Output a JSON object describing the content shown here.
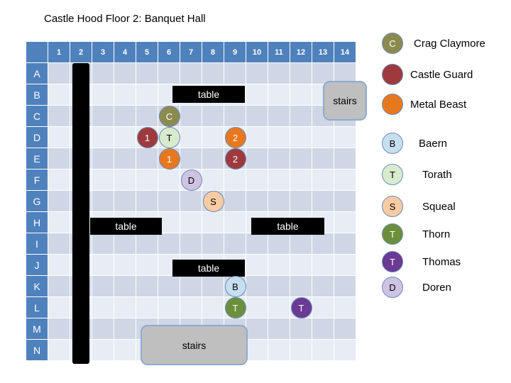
{
  "title": "Castle Hood Floor 2: Banquet Hall",
  "columns": [
    "1",
    "2",
    "3",
    "4",
    "5",
    "6",
    "7",
    "8",
    "9",
    "10",
    "11",
    "12",
    "13",
    "14"
  ],
  "rows": [
    "A",
    "B",
    "C",
    "D",
    "E",
    "F",
    "G",
    "H",
    "I",
    "J",
    "K",
    "L",
    "M",
    "N"
  ],
  "objects": {
    "table_label": "table",
    "stairs_label": "stairs"
  },
  "tokens": [
    {
      "id": "crag-claymore",
      "letter": "C",
      "row": "C",
      "col": "6",
      "color": "#8b8b4f",
      "text": "#ffffff"
    },
    {
      "id": "castle-guard-1",
      "letter": "1",
      "row": "D",
      "col": "5",
      "color": "#9e3a3e",
      "text": "#ffffff"
    },
    {
      "id": "torath",
      "letter": "T",
      "row": "D",
      "col": "6",
      "color": "#d8ebcc",
      "text": "#000000"
    },
    {
      "id": "metal-beast-2",
      "letter": "2",
      "row": "D",
      "col": "9",
      "color": "#e8781d",
      "text": "#ffffff"
    },
    {
      "id": "metal-beast-1",
      "letter": "1",
      "row": "E",
      "col": "6",
      "color": "#e8781d",
      "text": "#ffffff"
    },
    {
      "id": "castle-guard-2",
      "letter": "2",
      "row": "E",
      "col": "9",
      "color": "#9e3a3e",
      "text": "#ffffff"
    },
    {
      "id": "doren",
      "letter": "D",
      "row": "F",
      "col": "7",
      "color": "#cdc3e2",
      "text": "#000000"
    },
    {
      "id": "squeal",
      "letter": "S",
      "row": "G",
      "col": "8",
      "color": "#f8cba4",
      "text": "#000000"
    },
    {
      "id": "baern",
      "letter": "B",
      "row": "K",
      "col": "9",
      "color": "#c6dff0",
      "text": "#000000"
    },
    {
      "id": "thorn",
      "letter": "T",
      "row": "L",
      "col": "9",
      "color": "#6b8f3a",
      "text": "#ffffff"
    },
    {
      "id": "thomas",
      "letter": "T",
      "row": "L",
      "col": "12",
      "color": "#6b3a93",
      "text": "#ffffff"
    }
  ],
  "legend": [
    {
      "letter": "C",
      "label": "Crag Claymore",
      "color": "#8b8b4f",
      "text": "#ffffff"
    },
    {
      "letter": "",
      "label": "Castle Guard",
      "color": "#9e3a3e",
      "text": "#ffffff"
    },
    {
      "letter": "",
      "label": "Metal Beast",
      "color": "#e8781d",
      "text": "#ffffff"
    },
    {
      "letter": "B",
      "label": "Baern",
      "color": "#c6dff0",
      "text": "#000000"
    },
    {
      "letter": "T",
      "label": "Torath",
      "color": "#d8ebcc",
      "text": "#000000"
    },
    {
      "letter": "S",
      "label": "Squeal",
      "color": "#f8cba4",
      "text": "#000000"
    },
    {
      "letter": "T",
      "label": "Thorn",
      "color": "#6b8f3a",
      "text": "#ffffff"
    },
    {
      "letter": "T",
      "label": "Thomas",
      "color": "#6b3a93",
      "text": "#ffffff"
    },
    {
      "letter": "D",
      "label": "Doren",
      "color": "#cdc3e2",
      "text": "#000000"
    }
  ]
}
